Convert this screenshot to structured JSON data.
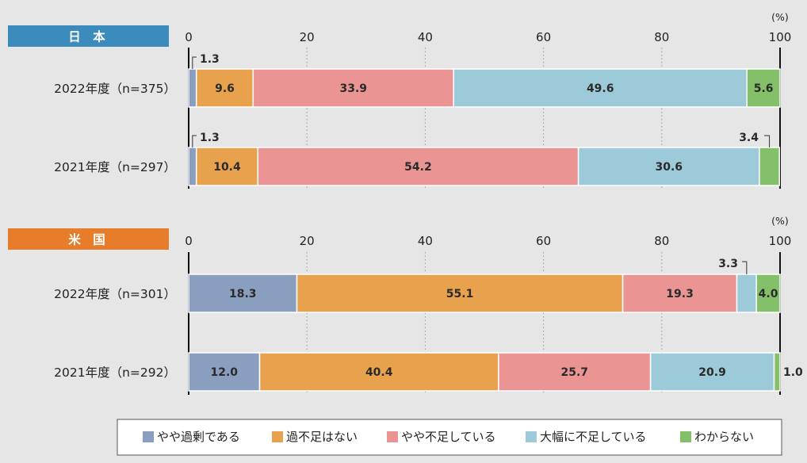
{
  "chart_data": {
    "type": "bar",
    "orientation": "horizontal",
    "stacked": true,
    "unit": "(%)",
    "xlim": [
      0,
      100
    ],
    "ticks": [
      "0",
      "20",
      "40",
      "60",
      "80",
      "100"
    ],
    "grid": "dotted vertical",
    "legend_position": "bottom",
    "series": [
      {
        "name": "やや過剰である",
        "color": "#8a9ebf"
      },
      {
        "name": "過不足はない",
        "color": "#e8a24e"
      },
      {
        "name": "やや不足している",
        "color": "#ea9594"
      },
      {
        "name": "大幅に不足している",
        "color": "#9ccad8"
      },
      {
        "name": "わからない",
        "color": "#84c06a"
      }
    ],
    "panels": [
      {
        "title": "日 本",
        "title_color": "#3b8bbd",
        "rows": [
          {
            "label": "2022年度（n=375）",
            "values": [
              1.3,
              9.6,
              33.9,
              49.6,
              5.6
            ]
          },
          {
            "label": "2021年度（n=297）",
            "values": [
              1.3,
              10.4,
              54.2,
              30.6,
              3.4
            ]
          }
        ]
      },
      {
        "title": "米 国",
        "title_color": "#e77c2b",
        "rows": [
          {
            "label": "2022年度（n=301）",
            "values": [
              18.3,
              55.1,
              19.3,
              3.3,
              4.0
            ]
          },
          {
            "label": "2021年度（n=292）",
            "values": [
              12.0,
              40.4,
              25.7,
              20.9,
              1.0
            ]
          }
        ]
      }
    ]
  }
}
